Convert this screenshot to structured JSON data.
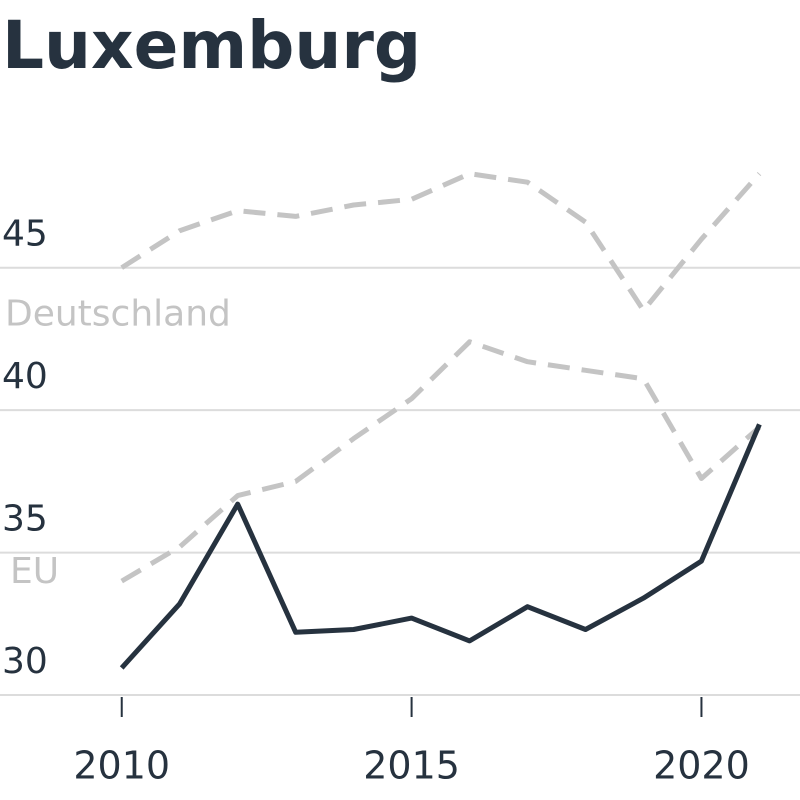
{
  "chart_data": {
    "type": "line",
    "title": "Luxemburg",
    "x": [
      2010,
      2011,
      2012,
      2013,
      2014,
      2015,
      2016,
      2017,
      2018,
      2019,
      2020,
      2021
    ],
    "xlim": [
      2007.9,
      2021.7
    ],
    "xticks": [
      2010,
      2015,
      2020
    ],
    "ylim": [
      30,
      48.5
    ],
    "yticks": [
      30,
      35,
      40,
      45
    ],
    "grid": true,
    "series": [
      {
        "name": "Deutschland",
        "color": "#c4c4c4",
        "dashed": true,
        "values": [
          45.0,
          46.3,
          47.0,
          46.8,
          47.2,
          47.4,
          48.3,
          48.0,
          46.6,
          43.5,
          46.0,
          48.3
        ]
      },
      {
        "name": "EU",
        "color": "#c4c4c4",
        "dashed": true,
        "values": [
          34.0,
          35.2,
          37.0,
          37.5,
          39.0,
          40.4,
          42.4,
          41.7,
          41.4,
          41.1,
          37.6,
          39.4
        ]
      },
      {
        "color": "#26323f",
        "dashed": false,
        "values": [
          30.95,
          33.2,
          36.7,
          32.2,
          32.3,
          32.7,
          31.9,
          33.1,
          32.3,
          33.4,
          34.7,
          39.5
        ]
      }
    ]
  }
}
